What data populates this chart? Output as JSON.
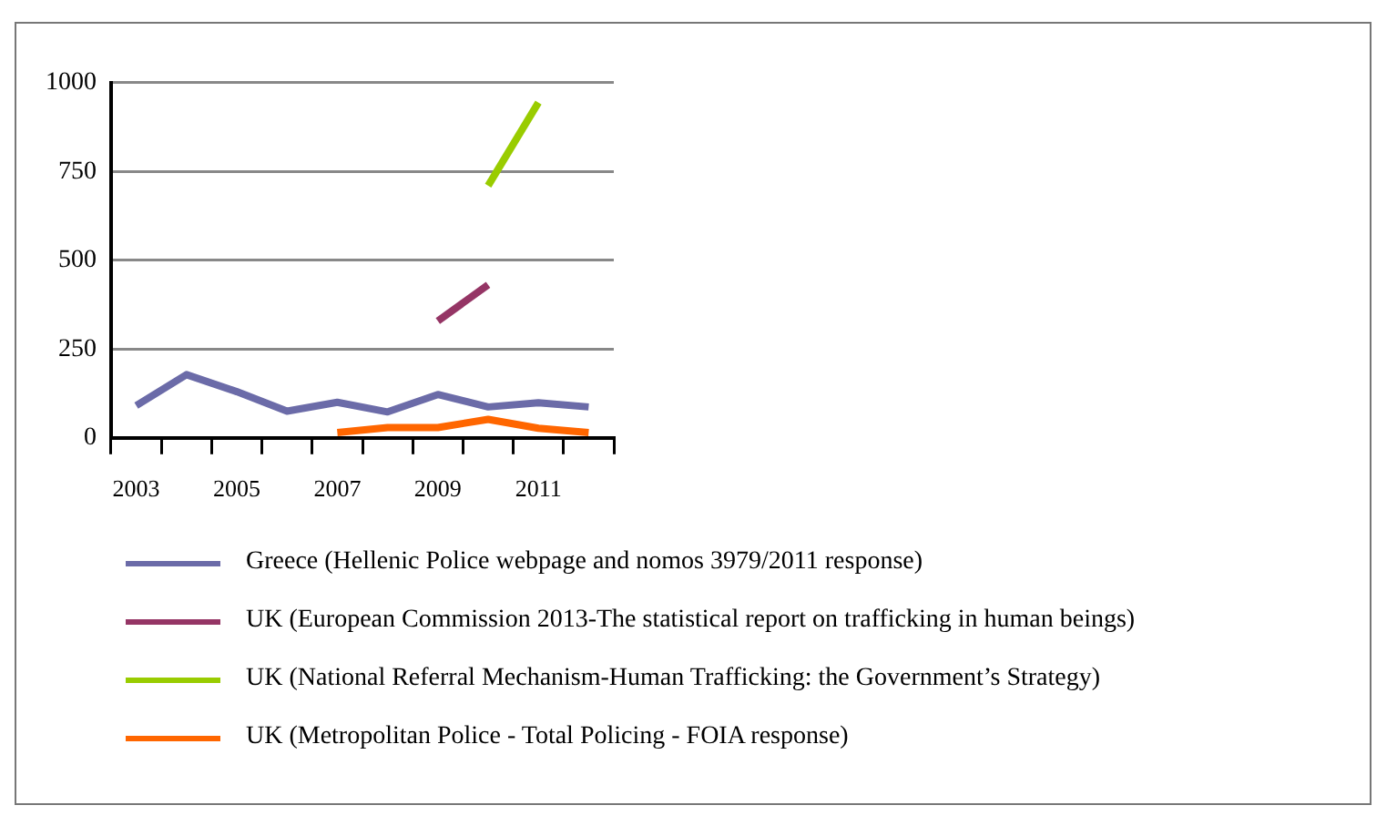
{
  "chart_data": {
    "type": "line",
    "categories": [
      "2003",
      null,
      "2005",
      null,
      "2007",
      null,
      "2009",
      null,
      "2011",
      null
    ],
    "series": [
      {
        "name": "Greece (Hellenic Police webpage and nomos 3979/2011  response)",
        "color": "#6b6ba8",
        "values": [
          91,
          178,
          130,
          75,
          100,
          73,
          122,
          87,
          99,
          87
        ]
      },
      {
        "name": "UK (European Commission 2013-The  statistical report on trafficking in human beings)",
        "color": "#953565",
        "values": [
          null,
          null,
          null,
          null,
          null,
          null,
          329,
          431,
          null,
          null
        ]
      },
      {
        "name": "UK (National Referral Mechanism-Human Trafficking: the Government’s Strategy)",
        "color": "#99cc00",
        "values": [
          null,
          null,
          null,
          null,
          null,
          null,
          null,
          710,
          944,
          null
        ]
      },
      {
        "name": "UK (Metropolitan Police - Total Policing - FOIA response)",
        "color": "#ff6600",
        "values": [
          null,
          null,
          null,
          null,
          15,
          29,
          29,
          52,
          27,
          15
        ]
      }
    ],
    "ylim": [
      0,
      1000
    ],
    "yticks": [
      0,
      250,
      500,
      750,
      1000
    ],
    "grid": "y",
    "legend": "bottom",
    "marker": "none",
    "line_style": "solid"
  }
}
